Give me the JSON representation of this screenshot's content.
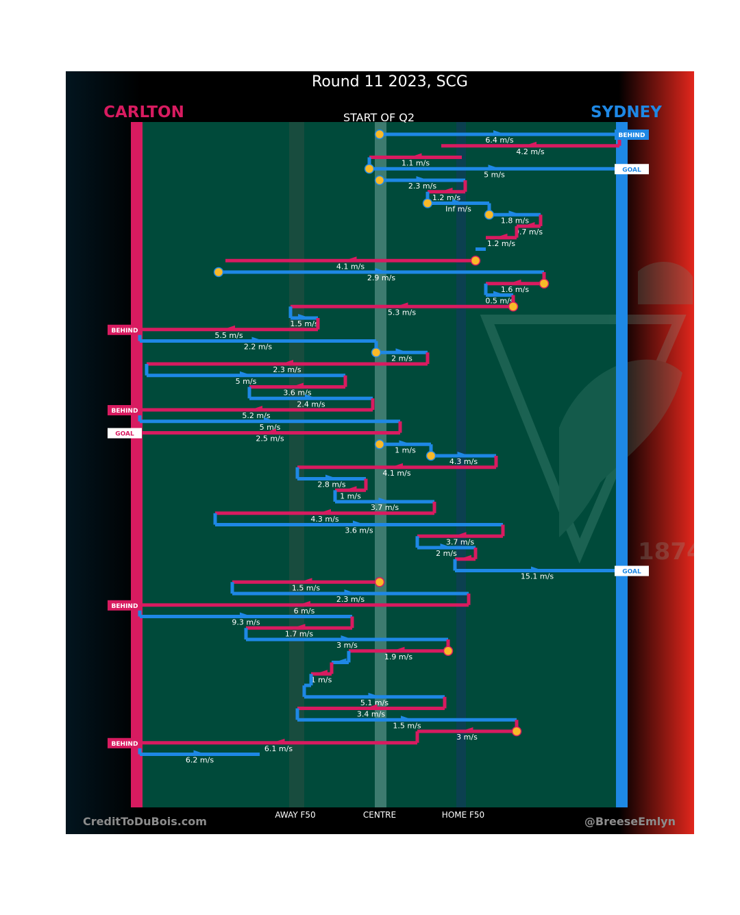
{
  "header": {
    "title": "Round 11 2023, SCG",
    "subtitle": "START OF Q2",
    "away_team": "CARLTON",
    "home_team": "SYDNEY"
  },
  "footer": {
    "left_credit": "CreditToDuBois.com",
    "right_credit": "@BreeseEmlyn"
  },
  "zones": [
    "AWAY F50",
    "CENTRE",
    "HOME F50"
  ],
  "watermark": {
    "year": "1874"
  },
  "colors": {
    "carlton": "#d81b60",
    "sydney": "#1e88e5",
    "ground": "#004a3a",
    "stoppage": "#f9b928",
    "away_side_bg": "#02151f",
    "home_side_bg": "#e2261c"
  },
  "chart_data": {
    "type": "line",
    "title": "Round 11 2023, SCG",
    "subtitle": "START OF Q2",
    "x_axis": {
      "labels": [
        "AWAY F50",
        "CENTRE",
        "HOME F50"
      ]
    },
    "series": [
      {
        "name": "CARLTON",
        "color": "#d81b60"
      },
      {
        "name": "SYDNEY",
        "color": "#1e88e5"
      }
    ],
    "chains": [
      {
        "team": "SYDNEY",
        "speed": "6.4 m/s",
        "from": 0,
        "to": 70,
        "stoppage": "start",
        "result": "BEHIND"
      },
      {
        "team": "CARLTON",
        "speed": "4.2 m/s",
        "from": 70,
        "to": 18
      },
      {
        "team": "CARLTON",
        "speed": "1.1 m/s",
        "from": 24,
        "to": -3
      },
      {
        "team": "SYDNEY",
        "speed": "5 m/s",
        "from": -3,
        "to": 70,
        "stoppage": "start",
        "result": "GOAL"
      },
      {
        "team": "SYDNEY",
        "speed": "2.3 m/s",
        "from": 0,
        "to": 25,
        "stoppage": "start"
      },
      {
        "team": "CARLTON",
        "speed": "1.2 m/s",
        "from": 25,
        "to": 14
      },
      {
        "team": "SYDNEY",
        "speed": "Inf m/s",
        "from": 14,
        "to": 32,
        "stoppage": "start"
      },
      {
        "team": "SYDNEY",
        "speed": "1.8 m/s",
        "from": 32,
        "to": 47,
        "stoppage": "start"
      },
      {
        "team": "CARLTON",
        "speed": "0.7 m/s",
        "from": 47,
        "to": 40
      },
      {
        "team": "CARLTON",
        "speed": "1.2 m/s",
        "from": 40,
        "to": 31
      },
      {
        "team": "SYDNEY",
        "speed": "",
        "from": 28,
        "to": 31
      },
      {
        "team": "CARLTON",
        "speed": "4.1 m/s",
        "from": 28,
        "to": -45,
        "stoppage": "start"
      },
      {
        "team": "SYDNEY",
        "speed": "2.9 m/s",
        "from": -47,
        "to": 48,
        "stoppage": "start"
      },
      {
        "team": "CARLTON",
        "speed": "1.6 m/s",
        "from": 48,
        "to": 31,
        "stoppage": "start"
      },
      {
        "team": "SYDNEY",
        "speed": "0.5 m/s",
        "from": 31,
        "to": 39
      },
      {
        "team": "CARLTON",
        "speed": "5.3 m/s",
        "from": 39,
        "to": -26,
        "stoppage": "start"
      },
      {
        "team": "SYDNEY",
        "speed": "1.5 m/s",
        "from": -26,
        "to": -18
      },
      {
        "team": "CARLTON",
        "speed": "5.5 m/s",
        "from": -18,
        "to": -70,
        "result": "BEHIND"
      },
      {
        "team": "SYDNEY",
        "speed": "2.2 m/s",
        "from": -70,
        "to": -1
      },
      {
        "team": "SYDNEY",
        "speed": "2 m/s",
        "from": -1,
        "to": 14,
        "stoppage": "start"
      },
      {
        "team": "CARLTON",
        "speed": "2.3 m/s",
        "from": 14,
        "to": -68
      },
      {
        "team": "SYDNEY",
        "speed": "5 m/s",
        "from": -68,
        "to": -10
      },
      {
        "team": "CARLTON",
        "speed": "3.6 m/s",
        "from": -10,
        "to": -38
      },
      {
        "team": "SYDNEY",
        "speed": "2.4 m/s",
        "from": -38,
        "to": -2
      },
      {
        "team": "CARLTON",
        "speed": "5.2 m/s",
        "from": -2,
        "to": -70,
        "result": "BEHIND"
      },
      {
        "team": "SYDNEY",
        "speed": "5 m/s",
        "from": -70,
        "to": 6
      },
      {
        "team": "CARLTON",
        "speed": "2.5 m/s",
        "from": 6,
        "to": -70,
        "result": "GOAL"
      },
      {
        "team": "SYDNEY",
        "speed": "1 m/s",
        "from": 0,
        "to": 15,
        "stoppage": "start"
      },
      {
        "team": "SYDNEY",
        "speed": "4.3 m/s",
        "from": 15,
        "to": 34,
        "stoppage": "start"
      },
      {
        "team": "CARLTON",
        "speed": "4.1 m/s",
        "from": 34,
        "to": -24
      },
      {
        "team": "SYDNEY",
        "speed": "2.8 m/s",
        "from": -24,
        "to": -4
      },
      {
        "team": "CARLTON",
        "speed": "1 m/s",
        "from": -4,
        "to": -13
      },
      {
        "team": "SYDNEY",
        "speed": "3.7 m/s",
        "from": -13,
        "to": 16
      },
      {
        "team": "CARLTON",
        "speed": "4.3 m/s",
        "from": 16,
        "to": -48
      },
      {
        "team": "SYDNEY",
        "speed": "3.6 m/s",
        "from": -48,
        "to": 36
      },
      {
        "team": "CARLTON",
        "speed": "3.7 m/s",
        "from": 36,
        "to": 11
      },
      {
        "team": "SYDNEY",
        "speed": "2 m/s",
        "from": 11,
        "to": 28
      },
      {
        "team": "CARLTON",
        "speed": "",
        "from": 28,
        "to": 22
      },
      {
        "team": "SYDNEY",
        "speed": "15.1 m/s",
        "from": 22,
        "to": 70,
        "result": "GOAL"
      },
      {
        "team": "CARLTON",
        "speed": "1.5 m/s",
        "from": 0,
        "to": -43,
        "stoppage": "start"
      },
      {
        "team": "SYDNEY",
        "speed": "2.3 m/s",
        "from": -43,
        "to": 26
      },
      {
        "team": "CARLTON",
        "speed": "6 m/s",
        "from": 26,
        "to": -70,
        "result": "BEHIND"
      },
      {
        "team": "SYDNEY",
        "speed": "9.3 m/s",
        "from": -70,
        "to": -8
      },
      {
        "team": "CARLTON",
        "speed": "1.7 m/s",
        "from": -8,
        "to": -39
      },
      {
        "team": "SYDNEY",
        "speed": "3 m/s",
        "from": -39,
        "to": 20
      },
      {
        "team": "CARLTON",
        "speed": "1.9 m/s",
        "from": 20,
        "to": -9,
        "stoppage": "start"
      },
      {
        "team": "SYDNEY",
        "speed": "",
        "from": -9,
        "to": -14
      },
      {
        "team": "CARLTON",
        "speed": "1 m/s",
        "from": -14,
        "to": -20
      },
      {
        "team": "SYDNEY",
        "speed": "",
        "from": -20,
        "to": -22
      },
      {
        "team": "SYDNEY",
        "speed": "5.1 m/s",
        "from": -22,
        "to": 19
      },
      {
        "team": "CARLTON",
        "speed": "3.4 m/s",
        "from": 19,
        "to": -24
      },
      {
        "team": "SYDNEY",
        "speed": "1.5 m/s",
        "from": -24,
        "to": 40
      },
      {
        "team": "CARLTON",
        "speed": "3 m/s",
        "from": 40,
        "to": 11,
        "stoppage": "start"
      },
      {
        "team": "CARLTON",
        "speed": "6.1 m/s",
        "from": 11,
        "to": -70,
        "result": "BEHIND"
      },
      {
        "team": "SYDNEY",
        "speed": "6.2 m/s",
        "from": -70,
        "to": -35
      }
    ]
  }
}
